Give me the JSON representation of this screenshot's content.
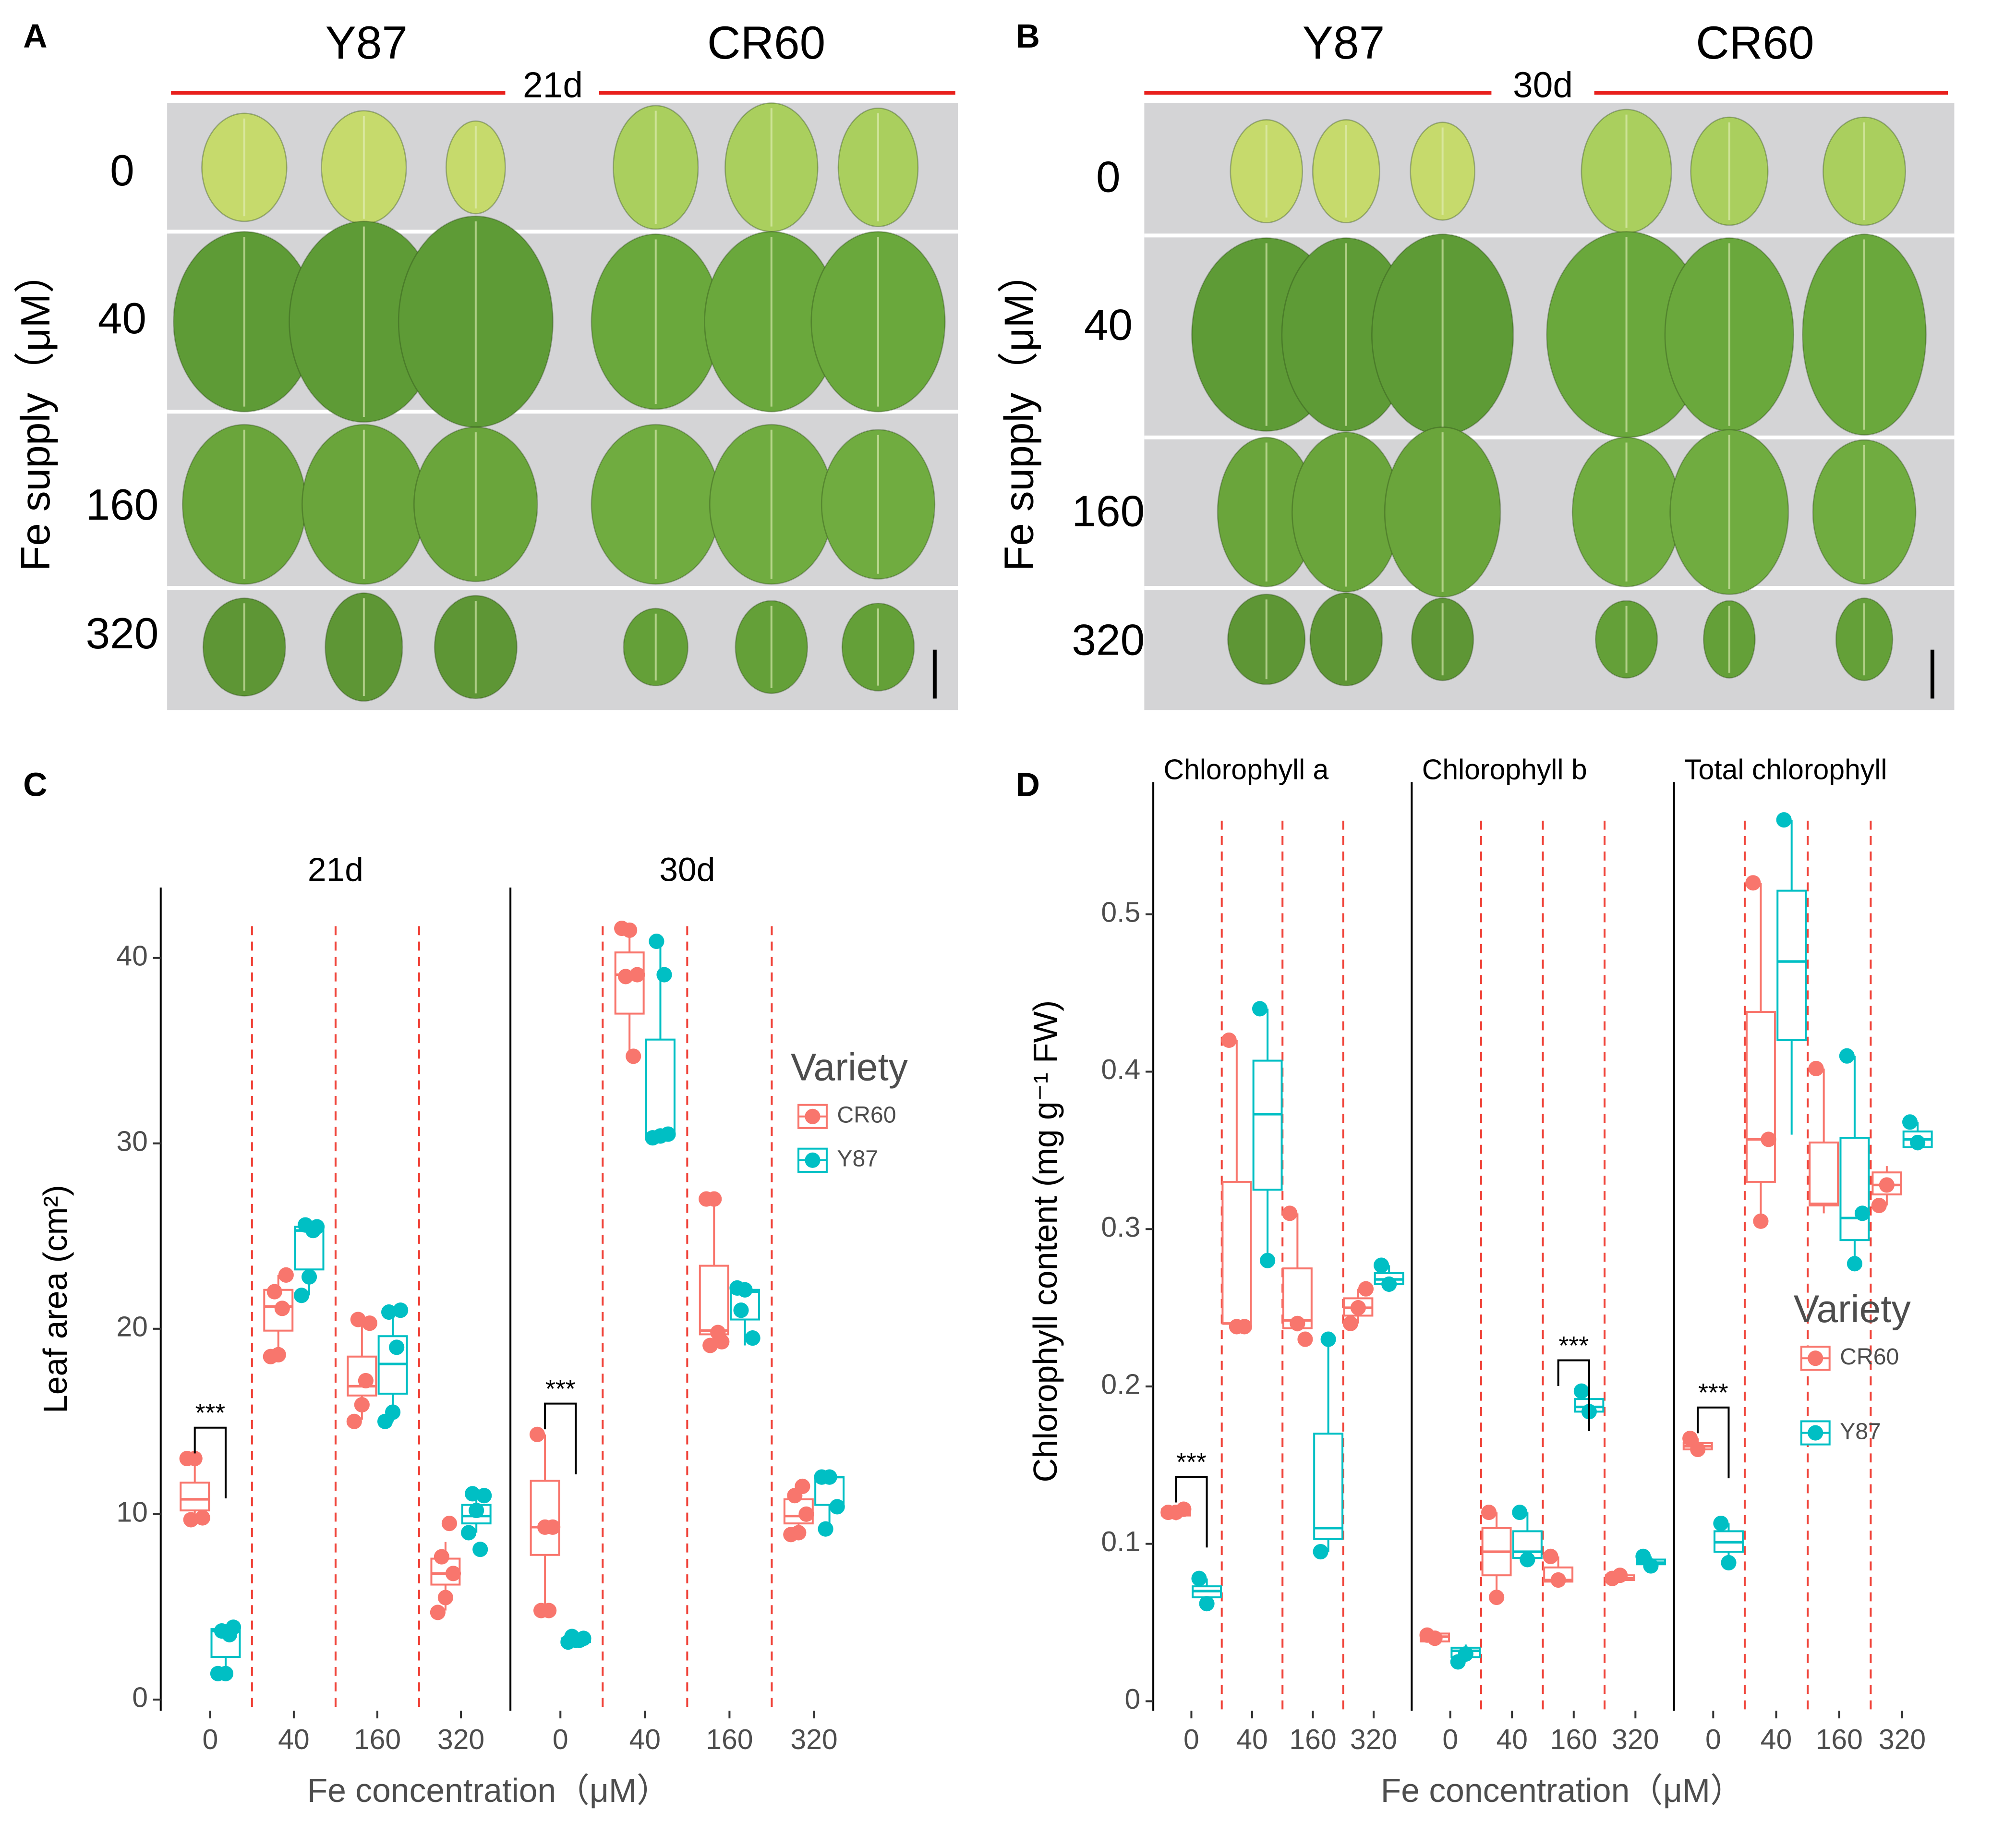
{
  "photo_panels": [
    {
      "label": "A",
      "day": "21d",
      "varieties": [
        "Y87",
        "CR60"
      ],
      "row_labels": [
        "0",
        "40",
        "160",
        "320"
      ],
      "ylabel": "Fe supply（μM）"
    },
    {
      "label": "B",
      "day": "30d",
      "varieties": [
        "Y87",
        "CR60"
      ],
      "row_labels": [
        "0",
        "40",
        "160",
        "320"
      ],
      "ylabel": "Fe supply（μM）"
    }
  ],
  "chart_data": [
    {
      "type": "box",
      "label": "C",
      "ylabel": "Leaf area (cm²)",
      "xlabel": "Fe concentration（μM）",
      "categories": [
        "0",
        "40",
        "160",
        "320"
      ],
      "ylim": [
        -0.6,
        43.8
      ],
      "yticks": [
        0,
        10,
        20,
        30,
        40
      ],
      "legend": {
        "title": "Variety",
        "position": "right"
      },
      "series": [
        {
          "name": "CR60",
          "color": "#f8766d"
        },
        {
          "name": "Y87",
          "color": "#00bfc4"
        }
      ],
      "facets": [
        {
          "title": "21d",
          "significance": {
            "label": "***",
            "category": 0
          },
          "data": [
            [
              {
                "min": 9.7,
                "q1": 10.2,
                "median": 10.8,
                "q3": 11.7,
                "max": 13,
                "points": [
                  13,
                  13,
                  9.8,
                  9.7
                ]
              },
              {
                "min": 18.5,
                "q1": 19.9,
                "median": 21.2,
                "q3": 22.1,
                "max": 22.9,
                "points": [
                  18.5,
                  18.6,
                  22.9,
                  22,
                  21.1
                ]
              },
              {
                "min": 15.1,
                "q1": 16.4,
                "median": 16.9,
                "q3": 18.5,
                "max": 20.3,
                "points": [
                  15,
                  15.9,
                  20.3,
                  20.5,
                  17.2
                ]
              },
              {
                "min": 4.8,
                "q1": 6.2,
                "median": 6.8,
                "q3": 7.6,
                "max": 8.5,
                "points": [
                  4.7,
                  5.5,
                  6.8,
                  7.7,
                  9.5
                ]
              }
            ],
            [
              {
                "min": 1.4,
                "q1": 2.3,
                "median": 3.7,
                "q3": 3.8,
                "max": 3.9,
                "points": [
                  1.4,
                  1.4,
                  3.9,
                  3.7,
                  3.5
                ]
              },
              {
                "min": 21.8,
                "q1": 23.2,
                "median": 25.3,
                "q3": 25.5,
                "max": 25.6,
                "points": [
                  21.8,
                  22.8,
                  25.5,
                  25.6,
                  25.3
                ]
              },
              {
                "min": 15,
                "q1": 16.5,
                "median": 18.1,
                "q3": 19.6,
                "max": 21,
                "points": [
                  15,
                  15.5,
                  21,
                  20.9,
                  19
                ]
              },
              {
                "min": 9,
                "q1": 9.5,
                "median": 9.9,
                "q3": 10.5,
                "max": 11.1,
                "points": [
                  9,
                  10.2,
                  11,
                  11.1,
                  8.1
                ]
              }
            ]
          ]
        },
        {
          "title": "30d",
          "significance": {
            "label": "***",
            "category": 0
          },
          "data": [
            [
              {
                "min": 4.8,
                "q1": 7.8,
                "median": 9.3,
                "q3": 11.8,
                "max": 14.3,
                "points": [
                  14.3,
                  9.3,
                  9.3,
                  4.8,
                  4.8
                ]
              },
              {
                "min": 34.9,
                "q1": 37,
                "median": 39.1,
                "q3": 40.3,
                "max": 41.5,
                "points": [
                  41.6,
                  41.5,
                  39.1,
                  39,
                  34.7
                ]
              },
              {
                "min": 19.1,
                "q1": 19.7,
                "median": 19.9,
                "q3": 23.4,
                "max": 27,
                "points": [
                  27,
                  27,
                  19.3,
                  19.1,
                  19.8
                ]
              },
              {
                "min": 8.9,
                "q1": 9.5,
                "median": 9.9,
                "q3": 10.8,
                "max": 11.5,
                "points": [
                  8.9,
                  9,
                  10,
                  11,
                  11.5
                ]
              }
            ],
            [
              {
                "min": 3,
                "q1": 3.1,
                "median": 3.2,
                "q3": 3.3,
                "max": 3.4,
                "points": [
                  3.1,
                  3.2,
                  3.3,
                  3.4,
                  3.2
                ]
              },
              {
                "min": 30.3,
                "q1": 30.4,
                "median": 30.5,
                "q3": 35.6,
                "max": 40.9,
                "points": [
                  30.3,
                  30.4,
                  30.5,
                  40.9,
                  39.1
                ]
              },
              {
                "min": 19.1,
                "q1": 20.5,
                "median": 22,
                "q3": 22.1,
                "max": 22.2,
                "points": [
                  22.2,
                  22.1,
                  19.5,
                  21
                ]
              },
              {
                "min": 8.9,
                "q1": 10.5,
                "median": 12,
                "q3": 12,
                "max": 12.1,
                "points": [
                  12,
                  12,
                  10.4,
                  9.2
                ]
              }
            ]
          ]
        }
      ]
    },
    {
      "type": "box",
      "label": "D",
      "ylabel": "Chlorophyll content (mg g⁻¹ FW)",
      "xlabel": "Fe concentration（μM）",
      "categories": [
        "0",
        "40",
        "160",
        "320"
      ],
      "ylim": [
        -0.006,
        0.584
      ],
      "yticks": [
        0,
        0.1,
        0.2,
        0.3,
        0.4,
        0.5
      ],
      "legend": {
        "title": "Variety",
        "position": "right"
      },
      "series": [
        {
          "name": "CR60",
          "color": "#f8766d"
        },
        {
          "name": "Y87",
          "color": "#00bfc4"
        }
      ],
      "facets": [
        {
          "title": "Chlorophyll a",
          "significance": {
            "label": "***",
            "category": 0
          },
          "data": [
            [
              {
                "min": 0.115,
                "q1": 0.118,
                "median": 0.12,
                "q3": 0.122,
                "max": 0.123,
                "points": [
                  0.12,
                  0.12,
                  0.122
                ]
              },
              {
                "min": 0.238,
                "q1": 0.24,
                "median": 0.24,
                "q3": 0.33,
                "max": 0.42,
                "points": [
                  0.42,
                  0.238,
                  0.238
                ]
              },
              {
                "min": 0.235,
                "q1": 0.237,
                "median": 0.242,
                "q3": 0.275,
                "max": 0.31,
                "points": [
                  0.31,
                  0.24,
                  0.23
                ]
              },
              {
                "min": 0.24,
                "q1": 0.245,
                "median": 0.25,
                "q3": 0.256,
                "max": 0.262,
                "points": [
                  0.24,
                  0.25,
                  0.262
                ]
              }
            ],
            [
              {
                "min": 0.062,
                "q1": 0.066,
                "median": 0.07,
                "q3": 0.073,
                "max": 0.078,
                "points": [
                  0.078,
                  0.062
                ]
              },
              {
                "min": 0.28,
                "q1": 0.325,
                "median": 0.373,
                "q3": 0.407,
                "max": 0.44,
                "points": [
                  0.44,
                  0.28
                ]
              },
              {
                "min": 0.095,
                "q1": 0.103,
                "median": 0.11,
                "q3": 0.17,
                "max": 0.23,
                "points": [
                  0.095,
                  0.23
                ]
              },
              {
                "min": 0.26,
                "q1": 0.265,
                "median": 0.268,
                "q3": 0.272,
                "max": 0.277,
                "points": [
                  0.277,
                  0.265
                ]
              }
            ]
          ]
        },
        {
          "title": "Chlorophyll b",
          "significance": {
            "label": "***",
            "category": 2
          },
          "data": [
            [
              {
                "min": 0.036,
                "q1": 0.038,
                "median": 0.041,
                "q3": 0.043,
                "max": 0.044,
                "points": [
                  0.042,
                  0.04
                ]
              },
              {
                "min": 0.066,
                "q1": 0.08,
                "median": 0.095,
                "q3": 0.11,
                "max": 0.12,
                "points": [
                  0.12,
                  0.066
                ]
              },
              {
                "min": 0.075,
                "q1": 0.076,
                "median": 0.077,
                "q3": 0.085,
                "max": 0.092,
                "points": [
                  0.092,
                  0.077
                ]
              },
              {
                "min": 0.076,
                "q1": 0.077,
                "median": 0.078,
                "q3": 0.08,
                "max": 0.082,
                "points": [
                  0.078,
                  0.08
                ]
              }
            ],
            [
              {
                "min": 0.025,
                "q1": 0.028,
                "median": 0.032,
                "q3": 0.034,
                "max": 0.036,
                "points": [
                  0.025,
                  0.03
                ]
              },
              {
                "min": 0.09,
                "q1": 0.091,
                "median": 0.095,
                "q3": 0.108,
                "max": 0.12,
                "points": [
                  0.12,
                  0.09
                ]
              },
              {
                "min": 0.183,
                "q1": 0.184,
                "median": 0.187,
                "q3": 0.192,
                "max": 0.197,
                "points": [
                  0.197,
                  0.184
                ]
              },
              {
                "min": 0.086,
                "q1": 0.087,
                "median": 0.088,
                "q3": 0.09,
                "max": 0.092,
                "points": [
                  0.092,
                  0.086
                ]
              }
            ]
          ]
        },
        {
          "title": "Total chlorophyll",
          "significance": {
            "label": "***",
            "category": 0
          },
          "data": [
            [
              {
                "min": 0.158,
                "q1": 0.16,
                "median": 0.162,
                "q3": 0.164,
                "max": 0.167,
                "points": [
                  0.167,
                  0.16
                ]
              },
              {
                "min": 0.305,
                "q1": 0.33,
                "median": 0.357,
                "q3": 0.438,
                "max": 0.52,
                "points": [
                  0.52,
                  0.305,
                  0.357
                ]
              },
              {
                "min": 0.31,
                "q1": 0.315,
                "median": 0.316,
                "q3": 0.355,
                "max": 0.402,
                "points": [
                  0.402
                ]
              },
              {
                "min": 0.315,
                "q1": 0.322,
                "median": 0.328,
                "q3": 0.336,
                "max": 0.34,
                "points": [
                  0.315,
                  0.328
                ]
              }
            ],
            [
              {
                "min": 0.09,
                "q1": 0.095,
                "median": 0.101,
                "q3": 0.108,
                "max": 0.113,
                "points": [
                  0.113,
                  0.088
                ]
              },
              {
                "min": 0.36,
                "q1": 0.42,
                "median": 0.47,
                "q3": 0.515,
                "max": 0.56,
                "points": [
                  0.56
                ]
              },
              {
                "min": 0.278,
                "q1": 0.293,
                "median": 0.307,
                "q3": 0.358,
                "max": 0.41,
                "points": [
                  0.41,
                  0.278,
                  0.31
                ]
              },
              {
                "min": 0.35,
                "q1": 0.352,
                "median": 0.357,
                "q3": 0.362,
                "max": 0.368,
                "points": [
                  0.368,
                  0.355
                ]
              }
            ]
          ]
        }
      ]
    }
  ]
}
